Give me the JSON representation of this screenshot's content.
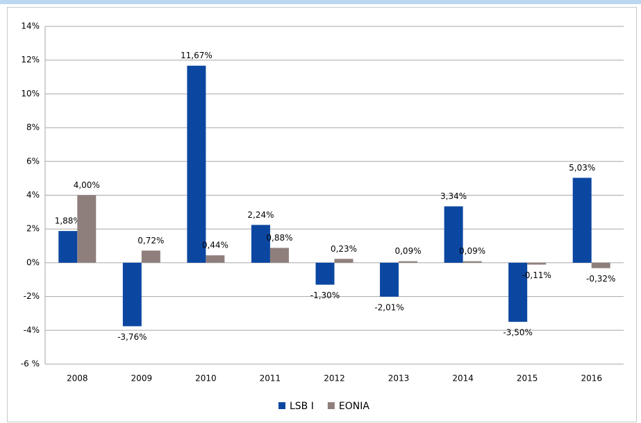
{
  "chart_data": {
    "type": "bar",
    "categories": [
      "2008",
      "2009",
      "2010",
      "2011",
      "2012",
      "2013",
      "2014",
      "2015",
      "2016"
    ],
    "series": [
      {
        "name": "LSB I",
        "color": "#0b47a1",
        "values": [
          1.88,
          -3.76,
          11.67,
          2.24,
          -1.3,
          -2.01,
          3.34,
          -3.5,
          5.03
        ],
        "value_labels": [
          "1,88%",
          "-3,76%",
          "11,67%",
          "2,24%",
          "-1,30%",
          "-2,01%",
          "3,34%",
          "-3,50%",
          "5,03%"
        ]
      },
      {
        "name": "EONIA",
        "color": "#8f7f7c",
        "values": [
          4.0,
          0.72,
          0.44,
          0.88,
          0.23,
          0.09,
          0.09,
          -0.11,
          -0.32
        ],
        "value_labels": [
          "4,00%",
          "0,72%",
          "0,44%",
          "0,88%",
          "0,23%",
          "0,09%",
          "0,09%",
          "-0,11%",
          "-0,32%"
        ]
      }
    ],
    "ylim": [
      -6,
      14
    ],
    "yticks": [
      {
        "value": -6,
        "label": "-6 %"
      },
      {
        "value": -4,
        "label": "-4%"
      },
      {
        "value": -2,
        "label": "-2%"
      },
      {
        "value": 0,
        "label": "0%"
      },
      {
        "value": 2,
        "label": "2%"
      },
      {
        "value": 4,
        "label": "4%"
      },
      {
        "value": 6,
        "label": "6%"
      },
      {
        "value": 8,
        "label": "8%"
      },
      {
        "value": 10,
        "label": "10%"
      },
      {
        "value": 12,
        "label": "12%"
      },
      {
        "value": 14,
        "label": "14%"
      }
    ],
    "grid": true
  }
}
